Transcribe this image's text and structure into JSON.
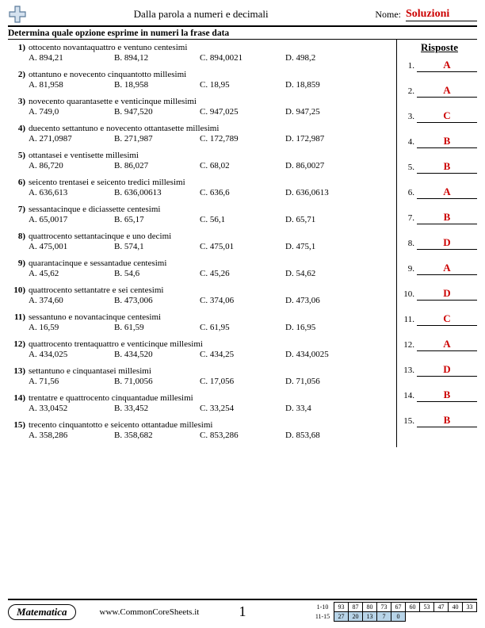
{
  "header": {
    "title": "Dalla parola a numeri e decimali",
    "name_label": "Nome:",
    "solutions": "Soluzioni"
  },
  "instruction": "Determina quale opzione esprime in numeri la frase data",
  "answers_title": "Risposte",
  "questions": [
    {
      "n": "1)",
      "text": "ottocento novantaquattro e ventuno centesimi",
      "A": "A. 894,21",
      "B": "B. 894,12",
      "C": "C. 894,0021",
      "D": "D. 498,2"
    },
    {
      "n": "2)",
      "text": "ottantuno e novecento cinquantotto millesimi",
      "A": "A. 81,958",
      "B": "B. 18,958",
      "C": "C. 18,95",
      "D": "D. 18,859"
    },
    {
      "n": "3)",
      "text": "novecento quarantasette e venticinque millesimi",
      "A": "A. 749,0",
      "B": "B. 947,520",
      "C": "C. 947,025",
      "D": "D. 947,25"
    },
    {
      "n": "4)",
      "text": "duecento settantuno e novecento ottantasette millesimi",
      "A": "A. 271,0987",
      "B": "B. 271,987",
      "C": "C. 172,789",
      "D": "D. 172,987"
    },
    {
      "n": "5)",
      "text": "ottantasei e ventisette millesimi",
      "A": "A. 86,720",
      "B": "B. 86,027",
      "C": "C. 68,02",
      "D": "D. 86,0027"
    },
    {
      "n": "6)",
      "text": "seicento trentasei e seicento tredici millesimi",
      "A": "A. 636,613",
      "B": "B. 636,00613",
      "C": "C. 636,6",
      "D": "D. 636,0613"
    },
    {
      "n": "7)",
      "text": "sessantacinque e diciassette centesimi",
      "A": "A. 65,0017",
      "B": "B. 65,17",
      "C": "C. 56,1",
      "D": "D. 65,71"
    },
    {
      "n": "8)",
      "text": "quattrocento settantacinque e uno decimi",
      "A": "A. 475,001",
      "B": "B. 574,1",
      "C": "C. 475,01",
      "D": "D. 475,1"
    },
    {
      "n": "9)",
      "text": "quarantacinque e sessantadue centesimi",
      "A": "A. 45,62",
      "B": "B. 54,6",
      "C": "C. 45,26",
      "D": "D. 54,62"
    },
    {
      "n": "10)",
      "text": "quattrocento settantatre e sei centesimi",
      "A": "A. 374,60",
      "B": "B. 473,006",
      "C": "C. 374,06",
      "D": "D. 473,06"
    },
    {
      "n": "11)",
      "text": "sessantuno e novantacinque centesimi",
      "A": "A. 16,59",
      "B": "B. 61,59",
      "C": "C. 61,95",
      "D": "D. 16,95"
    },
    {
      "n": "12)",
      "text": "quattrocento trentaquattro e venticinque millesimi",
      "A": "A. 434,025",
      "B": "B. 434,520",
      "C": "C. 434,25",
      "D": "D. 434,0025"
    },
    {
      "n": "13)",
      "text": "settantuno e cinquantasei millesimi",
      "A": "A. 71,56",
      "B": "B. 71,0056",
      "C": "C. 17,056",
      "D": "D. 71,056"
    },
    {
      "n": "14)",
      "text": "trentatre e quattrocento cinquantadue millesimi",
      "A": "A. 33,0452",
      "B": "B. 33,452",
      "C": "C. 33,254",
      "D": "D. 33,4"
    },
    {
      "n": "15)",
      "text": "trecento cinquantotto e seicento ottantadue millesimi",
      "A": "A. 358,286",
      "B": "B. 358,682",
      "C": "C. 853,286",
      "D": "D. 853,68"
    }
  ],
  "answers": [
    "A",
    "A",
    "C",
    "B",
    "B",
    "A",
    "B",
    "D",
    "A",
    "D",
    "C",
    "A",
    "D",
    "B",
    "B"
  ],
  "footer": {
    "subject": "Matematica",
    "site": "www.CommonCoreSheets.it",
    "page": "1",
    "score": {
      "r1_label": "1-10",
      "r1": [
        "93",
        "87",
        "80",
        "73",
        "67",
        "60",
        "53",
        "47",
        "40",
        "33"
      ],
      "r2_label": "11-15",
      "r2": [
        "27",
        "20",
        "13",
        "7",
        "0"
      ]
    }
  },
  "colors": {
    "answer": "#c00",
    "highlight": "#b8d4e8"
  }
}
